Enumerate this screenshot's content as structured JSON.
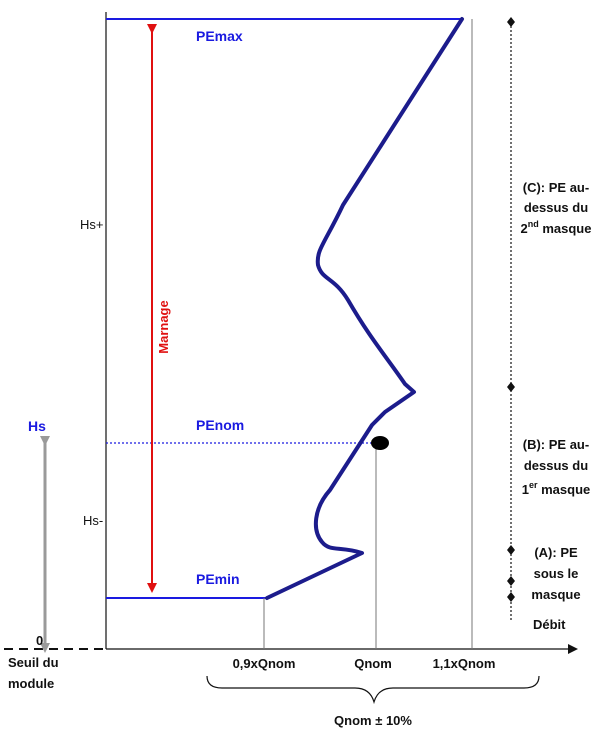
{
  "labels": {
    "pe_max": "PEmax",
    "pe_nom": "PEnom",
    "pe_min": "PEmin",
    "marnage": "Marnage",
    "hs_plus": "Hs+",
    "hs_minus": "Hs-",
    "hs": "Hs",
    "zero": "0",
    "seuil_line1": "Seuil du",
    "seuil_line2": "module",
    "debit": "Débit",
    "q_low": "0,9xQnom",
    "q_nom": "Qnom",
    "q_high": "1,1xQnom",
    "q_range": "Qnom ± 10%"
  },
  "zones": {
    "c_line1": "(C): PE au-",
    "c_line2": "dessus du",
    "c_line3_base": "2",
    "c_line3_sup": "nd",
    "c_line3_rest": " masque",
    "b_line1": "(B): PE au-",
    "b_line2": "dessus du",
    "b_line3_base": "1",
    "b_line3_sup": "er",
    "b_line3_rest": " masque",
    "a_line1": "(A): PE",
    "a_line2": "sous le",
    "a_line3": "masque"
  },
  "colors": {
    "curve": "#1c1c8c",
    "blue_text": "#1a1ae0",
    "red_arrow": "#e01010",
    "grey_arrow": "#9a9a9a"
  }
}
